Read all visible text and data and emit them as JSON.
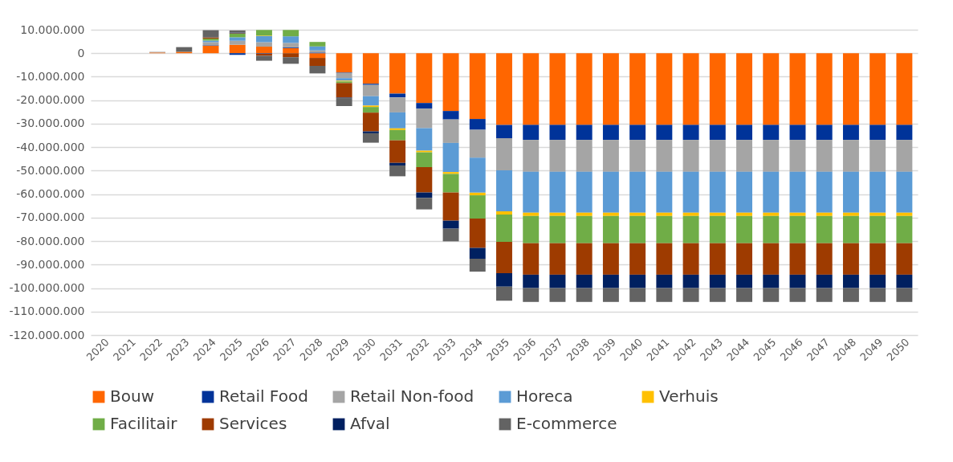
{
  "chart_data": {
    "type": "bar",
    "stacked": true,
    "categories": [
      "2020",
      "2021",
      "2022",
      "2023",
      "2024",
      "2025",
      "2026",
      "2027",
      "2028",
      "2029",
      "2030",
      "2031",
      "2032",
      "2033",
      "2034",
      "2035",
      "2036",
      "2037",
      "2038",
      "2039",
      "2040",
      "2041",
      "2042",
      "2043",
      "2044",
      "2045",
      "2046",
      "2047",
      "2048",
      "2049",
      "2050"
    ],
    "series": [
      {
        "name": "Bouw",
        "color": "#ff6600",
        "values": [
          null,
          null,
          300000,
          600000,
          3200000,
          3600000,
          2800000,
          2200000,
          -2000000,
          -8200000,
          -13000000,
          -17200000,
          -21200000,
          -24600000,
          -28000000,
          -30500000,
          -30500000,
          -30500000,
          -30500000,
          -30500000,
          -30500000,
          -30500000,
          -30500000,
          -30500000,
          -30500000,
          -30500000,
          -30500000,
          -30500000,
          -30500000,
          -30500000,
          -30500000
        ]
      },
      {
        "name": "Retail Food",
        "color": "#003399",
        "values": [
          null,
          null,
          null,
          null,
          200000,
          -700000,
          -200000,
          300000,
          300000,
          -200000,
          -500000,
          -1600000,
          -2400000,
          -3600000,
          -4600000,
          -5700000,
          -6400000,
          -6400000,
          -6400000,
          -6400000,
          -6400000,
          -6400000,
          -6400000,
          -6400000,
          -6400000,
          -6400000,
          -6400000,
          -6400000,
          -6400000,
          -6400000,
          -6400000
        ]
      },
      {
        "name": "Retail Non-food",
        "color": "#a5a5a5",
        "values": [
          null,
          null,
          300000,
          null,
          1300000,
          1700000,
          1900000,
          1900000,
          900000,
          -2200000,
          -4800000,
          -6400000,
          -8300000,
          -10000000,
          -11900000,
          -13700000,
          -13600000,
          -13600000,
          -13600000,
          -13600000,
          -13600000,
          -13600000,
          -13600000,
          -13600000,
          -13600000,
          -13600000,
          -13600000,
          -13600000,
          -13600000,
          -13600000,
          -13600000
        ]
      },
      {
        "name": "Horeca",
        "color": "#5b9bd5",
        "values": [
          null,
          null,
          null,
          null,
          700000,
          1500000,
          2600000,
          2800000,
          1700000,
          -1100000,
          -4000000,
          -6800000,
          -9600000,
          -12400000,
          -14900000,
          -17400000,
          -17400000,
          -17400000,
          -17400000,
          -17400000,
          -17400000,
          -17400000,
          -17400000,
          -17400000,
          -17400000,
          -17400000,
          -17400000,
          -17400000,
          -17400000,
          -17400000,
          -17400000
        ]
      },
      {
        "name": "Verhuis",
        "color": "#ffc000",
        "values": [
          null,
          null,
          null,
          null,
          null,
          null,
          200000,
          null,
          null,
          -300000,
          -600000,
          -700000,
          -700000,
          -800000,
          -1100000,
          -1400000,
          -1400000,
          -1400000,
          -1400000,
          -1400000,
          -1400000,
          -1400000,
          -1400000,
          -1400000,
          -1400000,
          -1400000,
          -1400000,
          -1400000,
          -1400000,
          -1400000,
          -1400000
        ]
      },
      {
        "name": "Facilitair",
        "color": "#70ad47",
        "values": [
          null,
          null,
          null,
          null,
          800000,
          1500000,
          2400000,
          2700000,
          1900000,
          -700000,
          -2400000,
          -4400000,
          -6300000,
          -7900000,
          -9900000,
          -11600000,
          -11600000,
          -11600000,
          -11600000,
          -11600000,
          -11600000,
          -11600000,
          -11600000,
          -11600000,
          -11600000,
          -11600000,
          -11600000,
          -11600000,
          -11600000,
          -11600000,
          -11600000
        ]
      },
      {
        "name": "Services",
        "color": "#9e3b00",
        "values": [
          null,
          null,
          null,
          null,
          500000,
          200000,
          -900000,
          -1700000,
          -3400000,
          -6200000,
          -8000000,
          -9600000,
          -10800000,
          -12000000,
          -12500000,
          -13400000,
          -13400000,
          -13400000,
          -13400000,
          -13400000,
          -13400000,
          -13400000,
          -13400000,
          -13400000,
          -13400000,
          -13400000,
          -13400000,
          -13400000,
          -13400000,
          -13400000,
          -13400000
        ]
      },
      {
        "name": "Afval",
        "color": "#002060",
        "values": [
          null,
          null,
          null,
          null,
          null,
          300000,
          null,
          null,
          null,
          -200000,
          -800000,
          -1100000,
          -2300000,
          -3400000,
          -4600000,
          -5700000,
          -5700000,
          -5700000,
          -5700000,
          -5700000,
          -5700000,
          -5700000,
          -5700000,
          -5700000,
          -5700000,
          -5700000,
          -5700000,
          -5700000,
          -5700000,
          -5700000,
          -5700000
        ]
      },
      {
        "name": "E-commerce",
        "color": "#636363",
        "values": [
          null,
          null,
          null,
          2000000,
          3100000,
          900000,
          -2100000,
          -2800000,
          -3200000,
          -3400000,
          -4000000,
          -4600000,
          -4900000,
          -5400000,
          -5500000,
          -6000000,
          -5900000,
          -5900000,
          -5900000,
          -5900000,
          -5900000,
          -5900000,
          -5900000,
          -5900000,
          -5900000,
          -5900000,
          -5900000,
          -5900000,
          -5900000,
          -5900000,
          -5900000
        ]
      }
    ],
    "ylim": [
      -120000000,
      10000000
    ],
    "yticks": [
      {
        "value": 10000000,
        "label": "10.000.000"
      },
      {
        "value": 0,
        "label": "0"
      },
      {
        "value": -10000000,
        "label": "-10.000.000"
      },
      {
        "value": -20000000,
        "label": "-20.000.000"
      },
      {
        "value": -30000000,
        "label": "-30.000.000"
      },
      {
        "value": -40000000,
        "label": "-40.000.000"
      },
      {
        "value": -50000000,
        "label": "-50.000.000"
      },
      {
        "value": -60000000,
        "label": "-60.000.000"
      },
      {
        "value": -70000000,
        "label": "-70.000.000"
      },
      {
        "value": -80000000,
        "label": "-80.000.000"
      },
      {
        "value": -90000000,
        "label": "-90.000.000"
      },
      {
        "value": -100000000,
        "label": "-100.000.000"
      },
      {
        "value": -110000000,
        "label": "-110.000.000"
      },
      {
        "value": -120000000,
        "label": "-120.000.000"
      }
    ],
    "grid": "y",
    "legend": "bottom"
  }
}
